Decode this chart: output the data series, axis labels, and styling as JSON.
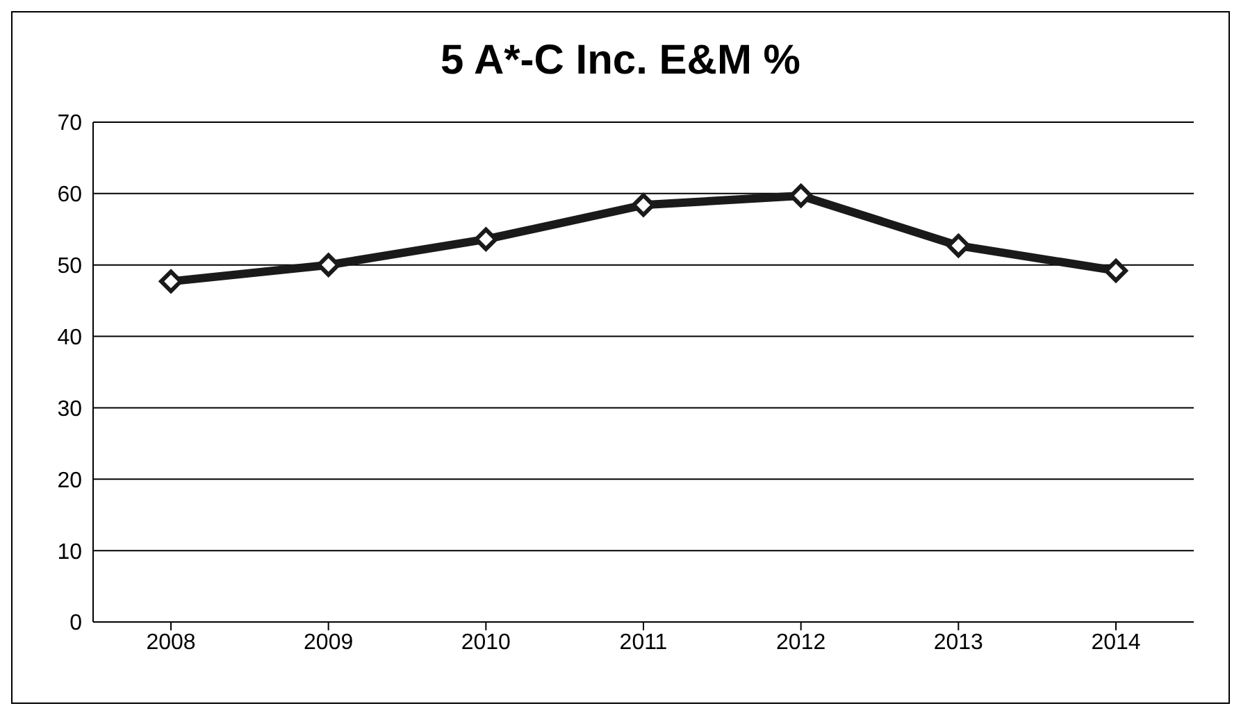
{
  "chart_data": {
    "type": "line",
    "title": "5 A*-C Inc. E&M %",
    "categories": [
      "2008",
      "2009",
      "2010",
      "2011",
      "2012",
      "2013",
      "2014"
    ],
    "series": [
      {
        "color": "#1a1a1a",
        "values": [
          47.7,
          50,
          53.6,
          58.4,
          59.7,
          52.7,
          49.2
        ]
      }
    ],
    "ylim": [
      0,
      70
    ],
    "yticks": [
      0,
      10,
      20,
      30,
      40,
      50,
      60,
      70
    ],
    "grid": "y",
    "marker": "diamond",
    "line_style": "solid"
  }
}
